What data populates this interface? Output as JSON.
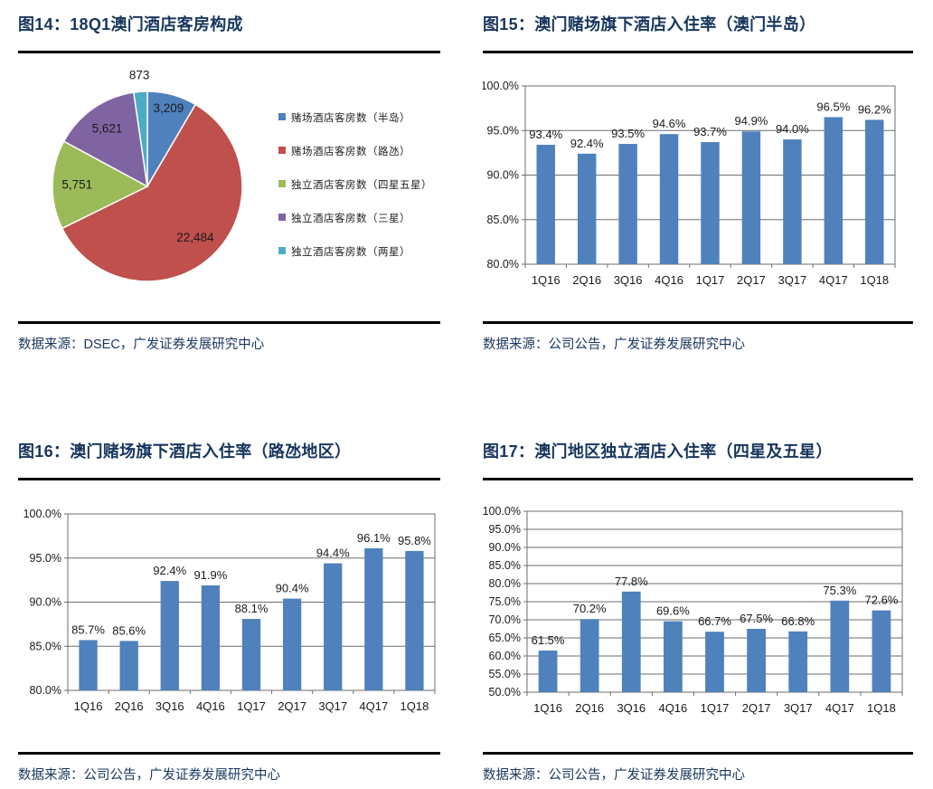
{
  "colors": {
    "title_navy": "#17365D",
    "bar_blue": "#4F81BD",
    "grid_gray": "#6E6E6E",
    "label_dark": "#1A1A1A",
    "pie": [
      "#4F81BD",
      "#C0504D",
      "#9BBB59",
      "#8064A2",
      "#4BACC6"
    ]
  },
  "figures": [
    {
      "title": "图14：18Q1澳门酒店客房构成",
      "source": "数据来源：DSEC，广发证券发展研究中心"
    },
    {
      "title": "图15：澳门赌场旗下酒店入住率（澳门半岛）",
      "source": "数据来源：公司公告，广发证券发展研究中心"
    },
    {
      "title": "图16：澳门赌场旗下酒店入住率（路氹地区）",
      "source": "数据来源：公司公告，广发证券发展研究中心"
    },
    {
      "title": "图17：澳门地区独立酒店入住率（四星及五星）",
      "source": "数据来源：公司公告，广发证券发展研究中心"
    }
  ],
  "chart_data": [
    {
      "type": "pie",
      "title": "图14：18Q1澳门酒店客房构成",
      "labels": [
        "赌场酒店客房数（半岛）",
        "赌场酒店客房数（路氹）",
        "独立酒店客房数（四星五星）",
        "独立酒店客房数（三星）",
        "独立酒店客房数（两星）"
      ],
      "values": [
        3209,
        22484,
        5751,
        5621,
        873
      ],
      "value_labels": [
        "3,209",
        "22,484",
        "5,751",
        "5,621",
        "873"
      ],
      "colors": [
        "#4F81BD",
        "#C0504D",
        "#9BBB59",
        "#8064A2",
        "#4BACC6"
      ],
      "legend_position": "right",
      "start_angle": "top",
      "direction": "clockwise"
    },
    {
      "type": "bar",
      "title": "图15：澳门赌场旗下酒店入住率（澳门半岛）",
      "categories": [
        "1Q16",
        "2Q16",
        "3Q16",
        "4Q16",
        "1Q17",
        "2Q17",
        "3Q17",
        "4Q17",
        "1Q18"
      ],
      "values": [
        93.4,
        92.4,
        93.5,
        94.6,
        93.7,
        94.9,
        94.0,
        96.5,
        96.2
      ],
      "value_labels": [
        "93.4%",
        "92.4%",
        "93.5%",
        "94.6%",
        "93.7%",
        "94.9%",
        "94.0%",
        "96.5%",
        "96.2%"
      ],
      "ylim": [
        80,
        100
      ],
      "ytick_step": 5,
      "ytick_labels": [
        "80.0%",
        "85.0%",
        "90.0%",
        "95.0%",
        "100.0%"
      ],
      "bar_color": "#4F81BD",
      "grid": true,
      "xlabel": "",
      "ylabel": ""
    },
    {
      "type": "bar",
      "title": "图16：澳门赌场旗下酒店入住率（路氹地区）",
      "categories": [
        "1Q16",
        "2Q16",
        "3Q16",
        "4Q16",
        "1Q17",
        "2Q17",
        "3Q17",
        "4Q17",
        "1Q18"
      ],
      "values": [
        85.7,
        85.6,
        92.4,
        91.9,
        88.1,
        90.4,
        94.4,
        96.1,
        95.8
      ],
      "value_labels": [
        "85.7%",
        "85.6%",
        "92.4%",
        "91.9%",
        "88.1%",
        "90.4%",
        "94.4%",
        "96.1%",
        "95.8%"
      ],
      "ylim": [
        80,
        100
      ],
      "ytick_step": 5,
      "ytick_labels": [
        "80.0%",
        "85.0%",
        "90.0%",
        "95.0%",
        "100.0%"
      ],
      "bar_color": "#4F81BD",
      "grid": true,
      "xlabel": "",
      "ylabel": ""
    },
    {
      "type": "bar",
      "title": "图17：澳门地区独立酒店入住率（四星及五星）",
      "categories": [
        "1Q16",
        "2Q16",
        "3Q16",
        "4Q16",
        "1Q17",
        "2Q17",
        "3Q17",
        "4Q17",
        "1Q18"
      ],
      "values": [
        61.5,
        70.2,
        77.8,
        69.6,
        66.7,
        67.5,
        66.8,
        75.3,
        72.6
      ],
      "value_labels": [
        "61.5%",
        "70.2%",
        "77.8%",
        "69.6%",
        "66.7%",
        "67.5%",
        "66.8%",
        "75.3%",
        "72.6%"
      ],
      "ylim": [
        50,
        100
      ],
      "ytick_step": 5,
      "ytick_labels": [
        "50.0%",
        "55.0%",
        "60.0%",
        "65.0%",
        "70.0%",
        "75.0%",
        "80.0%",
        "85.0%",
        "90.0%",
        "95.0%",
        "100.0%"
      ],
      "bar_color": "#4F81BD",
      "grid": true,
      "xlabel": "",
      "ylabel": ""
    }
  ]
}
